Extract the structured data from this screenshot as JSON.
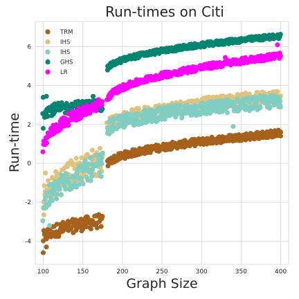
{
  "chart_data": {
    "type": "scatter",
    "title": "Run-times on Citi",
    "xlabel": "Graph Size",
    "ylabel": "Run-time",
    "xlim": [
      90,
      410
    ],
    "ylim": [
      -5.2,
      7.3
    ],
    "xticks": [
      100,
      150,
      200,
      250,
      300,
      350,
      400
    ],
    "yticks": [
      -4,
      -2,
      0,
      2,
      4,
      6
    ],
    "grid": true,
    "legend_position": "top-left",
    "gap_x": [
      175,
      181
    ],
    "series": [
      {
        "name": "TRM",
        "color": "#a6611a",
        "segments": [
          {
            "x_from": 100,
            "x_to": 175,
            "y_start": -3.9,
            "y_end": -2.95,
            "spread": 0.35
          },
          {
            "x_from": 181,
            "x_to": 400,
            "y_start": -0.1,
            "y_end": 1.55,
            "spread": 0.18
          }
        ]
      },
      {
        "name": "IHS",
        "color": "#dfc27d",
        "segments": [
          {
            "x_from": 100,
            "x_to": 175,
            "y_start": -2.2,
            "y_end": 0.2,
            "spread": 0.75
          },
          {
            "x_from": 181,
            "x_to": 400,
            "y_start": 1.8,
            "y_end": 3.45,
            "spread": 0.35
          }
        ]
      },
      {
        "name": "IHS",
        "color": "#80cdc1",
        "segments": [
          {
            "x_from": 100,
            "x_to": 175,
            "y_start": -2.5,
            "y_end": -0.05,
            "spread": 0.6
          },
          {
            "x_from": 181,
            "x_to": 400,
            "y_start": 1.7,
            "y_end": 3.2,
            "spread": 0.35
          }
        ]
      },
      {
        "name": "GHS",
        "color": "#018571",
        "segments": [
          {
            "x_from": 100,
            "x_to": 175,
            "y_start": 2.6,
            "y_end": 3.0,
            "spread": 0.3
          },
          {
            "x_from": 181,
            "x_to": 400,
            "y_start": 4.8,
            "y_end": 6.55,
            "spread": 0.12
          }
        ]
      },
      {
        "name": "LR",
        "color": "#ff00ff",
        "segments": [
          {
            "x_from": 100,
            "x_to": 175,
            "y_start": 0.7,
            "y_end": 3.1,
            "spread": 0.3
          },
          {
            "x_from": 181,
            "x_to": 400,
            "y_start": 3.2,
            "y_end": 5.55,
            "spread": 0.15
          }
        ]
      }
    ],
    "outliers": [
      {
        "series": 0,
        "x": 100,
        "y": -4.6
      },
      {
        "series": 0,
        "x": 104,
        "y": -4.3
      },
      {
        "series": 1,
        "x": 103,
        "y": -0.5
      },
      {
        "series": 1,
        "x": 130,
        "y": -0.1
      },
      {
        "series": 1,
        "x": 135,
        "y": 0.0
      },
      {
        "series": 1,
        "x": 165,
        "y": 0.2
      },
      {
        "series": 2,
        "x": 108,
        "y": -3.2
      },
      {
        "series": 2,
        "x": 340,
        "y": 1.9
      },
      {
        "series": 3,
        "x": 100,
        "y": 3.4
      },
      {
        "series": 3,
        "x": 104,
        "y": 3.45
      },
      {
        "series": 3,
        "x": 100,
        "y": 1.8
      },
      {
        "series": 3,
        "x": 158,
        "y": 3.15
      },
      {
        "series": 3,
        "x": 163,
        "y": 3.45
      },
      {
        "series": 4,
        "x": 196,
        "y": 3.7
      },
      {
        "series": 4,
        "x": 236,
        "y": 4.45
      },
      {
        "series": 4,
        "x": 330,
        "y": 5.45
      },
      {
        "series": 4,
        "x": 396,
        "y": 6.1
      }
    ]
  }
}
